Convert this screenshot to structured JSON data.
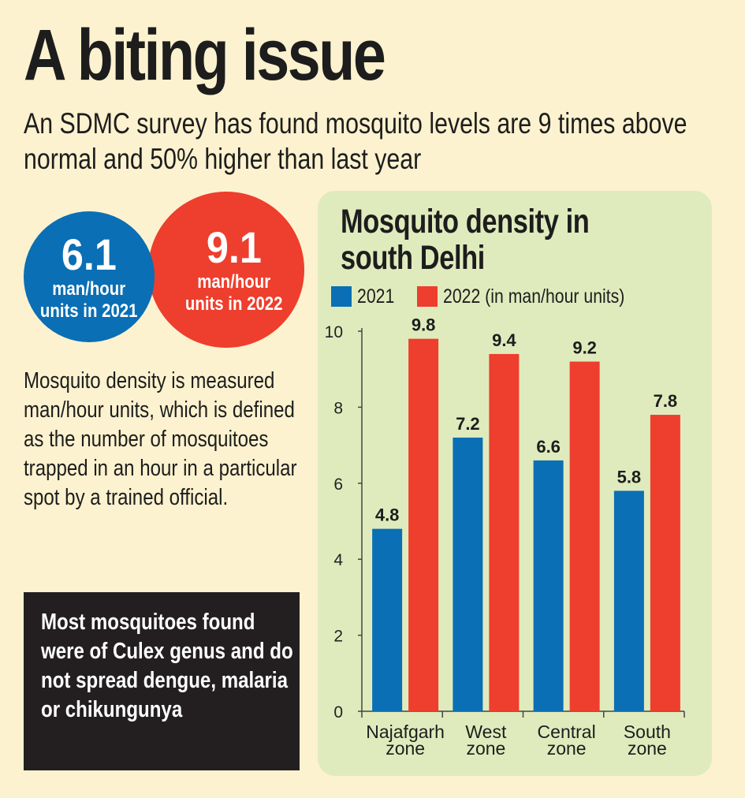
{
  "headline": "A biting issue",
  "subhead": "An SDMC survey has found mosquito levels are 9 times above normal and 50% higher than last year",
  "stats": [
    {
      "value": "6.1",
      "line1": "man/hour",
      "line2": "units in 2021",
      "color": "#0a6fb4"
    },
    {
      "value": "9.1",
      "line1": "man/hour",
      "line2": "units in 2022",
      "color": "#ee3e2d"
    }
  ],
  "definition": "Mosquito density is measured man/hour units, which is defined as the number of mosquitoes trapped in an hour in a particular spot by a trained official.",
  "note": "Most mosquitoes found were of Culex genus and do not spread dengue, malaria or chikungunya",
  "colors": {
    "background": "#fcf2cf",
    "panel": "#e0ebbd",
    "series2021": "#0a6fb4",
    "series2022": "#ee3e2d",
    "note_box": "#231f20"
  },
  "chart_data": {
    "type": "bar",
    "title": "Mosquito density in south Delhi",
    "categories": [
      "Najafgarh zone",
      "West zone",
      "Central zone",
      "South zone"
    ],
    "category_lines": [
      [
        "Najafgarh",
        "zone"
      ],
      [
        "West",
        "zone"
      ],
      [
        "Central",
        "zone"
      ],
      [
        "South",
        "zone"
      ]
    ],
    "series": [
      {
        "name": "2021",
        "values": [
          4.8,
          7.2,
          6.6,
          5.8
        ],
        "color": "#0a6fb4"
      },
      {
        "name": "2022 (in man/hour units)",
        "values": [
          9.8,
          9.4,
          9.2,
          7.8
        ],
        "color": "#ee3e2d"
      }
    ],
    "ylim": [
      0,
      10
    ],
    "yticks": [
      0,
      2,
      4,
      6,
      8,
      10
    ],
    "legend_position": "top",
    "grid": false
  }
}
